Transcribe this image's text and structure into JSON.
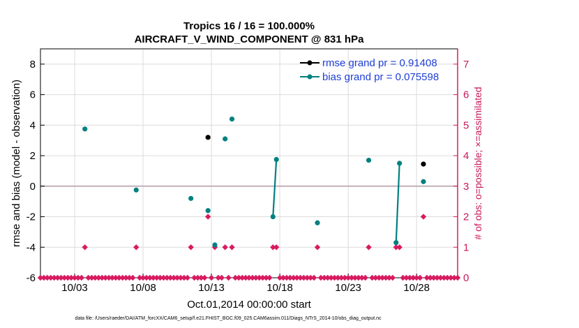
{
  "chart_data": {
    "type": "line",
    "title": "Tropics 16 / 16 = 100.000%",
    "subtitle": "AIRCRAFT_V_WIND_COMPONENT @ 831 hPa",
    "xlabel": "Oct.01,2014 00:00:00 start",
    "ylabel": "rmse and bias (model - observation)",
    "y2label": "# of obs: o=possible; ×=assimilated",
    "xlim": [
      1,
      31.5
    ],
    "ylim": [
      -6,
      9
    ],
    "y2lim": [
      0,
      7.5
    ],
    "x_ticks": [
      3.5,
      8.5,
      13.5,
      18.5,
      23.5,
      28.5
    ],
    "x_tick_labels": [
      "10/03",
      "10/08",
      "10/13",
      "10/18",
      "10/23",
      "10/28"
    ],
    "y_ticks": [
      8,
      6,
      4,
      2,
      0,
      -2,
      -4,
      -6
    ],
    "y_tick_labels": [
      "8",
      "6",
      "4",
      "2",
      "0",
      "-2",
      "-4",
      "-6"
    ],
    "y2_ticks": [
      7,
      6,
      5,
      4,
      3,
      2,
      1,
      0
    ],
    "y2_tick_labels": [
      "7",
      "6",
      "5",
      "4",
      "3",
      "2",
      "1",
      "0"
    ],
    "legend": {
      "position": "top-right",
      "rmse_label": "rmse grand pr = 0.91408",
      "bias_label": "bias grand pr = 0.075598"
    },
    "colors": {
      "rmse": "#000000",
      "bias": "#008080",
      "obs": "#d81b60",
      "zero_line": "#c0b0b8"
    },
    "series": [
      {
        "name": "rmse",
        "segments": [
          [
            [
              13.25,
              3.2
            ]
          ],
          [
            [
              29.0,
              1.45
            ]
          ]
        ]
      },
      {
        "name": "bias",
        "segments": [
          [
            [
              4.25,
              3.75
            ]
          ],
          [
            [
              8.0,
              -0.25
            ]
          ],
          [
            [
              12.0,
              -0.8
            ]
          ],
          [
            [
              13.25,
              -1.6
            ]
          ],
          [
            [
              13.75,
              -3.85
            ]
          ],
          [
            [
              14.5,
              3.1
            ]
          ],
          [
            [
              15.0,
              4.4
            ]
          ],
          [
            [
              18.0,
              -2.0
            ],
            [
              18.25,
              1.75
            ]
          ],
          [
            [
              21.25,
              -2.4
            ]
          ],
          [
            [
              25.0,
              1.7
            ]
          ],
          [
            [
              27.0,
              -3.7
            ],
            [
              27.25,
              1.5
            ]
          ],
          [
            [
              29.0,
              0.3
            ]
          ]
        ]
      }
    ],
    "obs_count_nonzero": [
      {
        "x": 4.25,
        "n": 1
      },
      {
        "x": 8.0,
        "n": 1
      },
      {
        "x": 12.0,
        "n": 1
      },
      {
        "x": 13.25,
        "n": 2
      },
      {
        "x": 13.75,
        "n": 1
      },
      {
        "x": 14.5,
        "n": 1
      },
      {
        "x": 15.0,
        "n": 1
      },
      {
        "x": 18.0,
        "n": 1
      },
      {
        "x": 18.25,
        "n": 1
      },
      {
        "x": 21.25,
        "n": 1
      },
      {
        "x": 25.0,
        "n": 1
      },
      {
        "x": 27.0,
        "n": 1
      },
      {
        "x": 27.25,
        "n": 1
      },
      {
        "x": 29.0,
        "n": 2
      }
    ],
    "obs_x_start": 1.0,
    "obs_x_end": 31.5,
    "obs_x_step": 0.25
  },
  "footer": "data file: /Users/raeder/DAI/ATM_forcXX/CAM6_setup/f.e21.FHIST_BGC.f09_025.CAM6assim.011/Diags_NTrS_2014-10/obs_diag_output.nc"
}
